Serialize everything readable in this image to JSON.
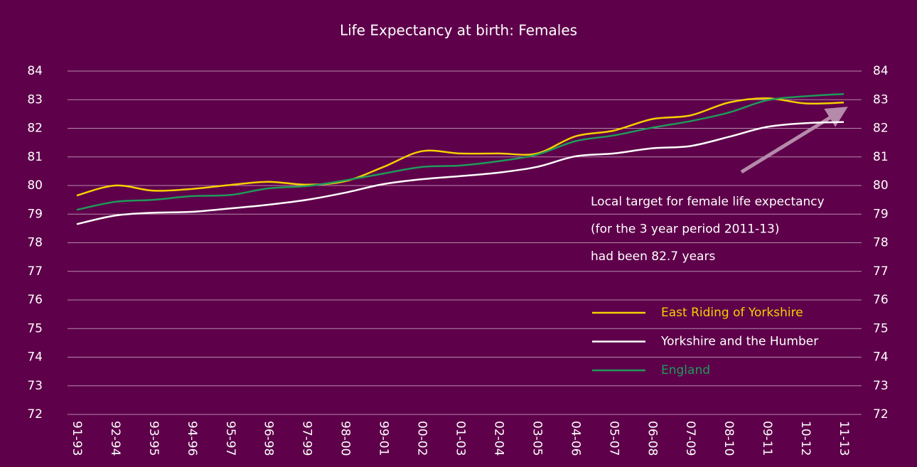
{
  "chart_data": {
    "type": "line",
    "title": "Life Expectancy at birth: Females",
    "categories": [
      "91-93",
      "92-94",
      "93-95",
      "94-96",
      "95-97",
      "96-98",
      "97-99",
      "98-00",
      "99-01",
      "00-02",
      "01-03",
      "02-04",
      "03-05",
      "04-06",
      "05-07",
      "06-08",
      "07-09",
      "08-10",
      "09-11",
      "10-12",
      "11-13"
    ],
    "series": [
      {
        "name": "East Riding of Yorkshire",
        "color": "#f5d000",
        "values": [
          79.65,
          80.0,
          79.82,
          79.88,
          80.02,
          80.13,
          80.03,
          80.15,
          80.65,
          81.2,
          81.12,
          81.12,
          81.12,
          81.72,
          81.92,
          82.32,
          82.45,
          82.9,
          83.05,
          82.87,
          82.9
        ]
      },
      {
        "name": "Yorkshire and the Humber",
        "color": "#ffffff",
        "values": [
          78.65,
          78.95,
          79.05,
          79.08,
          79.2,
          79.33,
          79.5,
          79.75,
          80.05,
          80.22,
          80.33,
          80.45,
          80.65,
          81.02,
          81.12,
          81.3,
          81.38,
          81.7,
          82.05,
          82.18,
          82.22
        ]
      },
      {
        "name": "England",
        "color": "#1f9a5a",
        "values": [
          79.15,
          79.43,
          79.5,
          79.63,
          79.67,
          79.9,
          79.98,
          80.18,
          80.42,
          80.65,
          80.7,
          80.85,
          81.08,
          81.55,
          81.75,
          82.02,
          82.25,
          82.55,
          82.98,
          83.12,
          83.2
        ]
      }
    ],
    "ylim": [
      72,
      84
    ],
    "yticks": [
      72,
      73,
      74,
      75,
      76,
      77,
      78,
      79,
      80,
      81,
      82,
      83,
      84
    ],
    "grid": true,
    "annotations": [
      "Local target for female life expectancy",
      "(for the 3 year period 2011-13)",
      "had been 82.7 years"
    ]
  }
}
